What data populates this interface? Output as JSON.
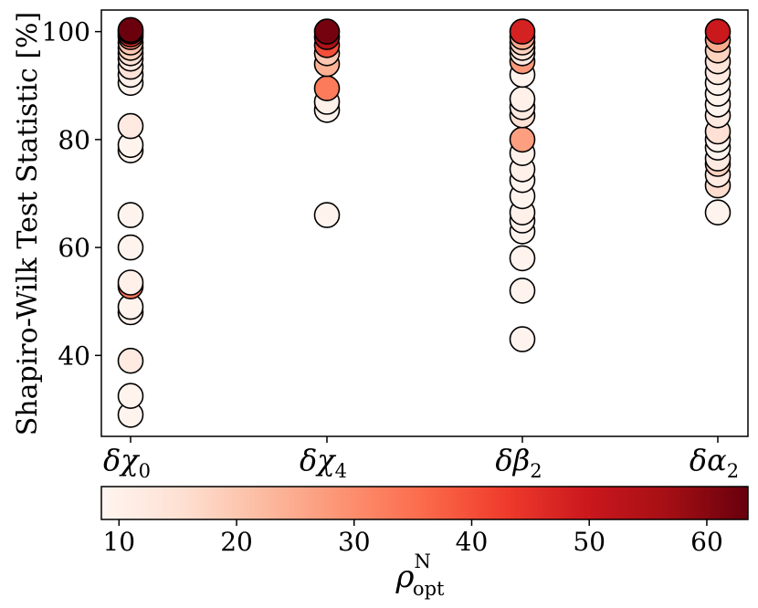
{
  "chart_data": {
    "type": "scatter",
    "ylabel": "Shapiro-Wilk Test Statistic [%]",
    "ylim": [
      25,
      104
    ],
    "yticks": [
      40,
      60,
      80,
      100
    ],
    "categories": [
      {
        "greek": "χ",
        "sub": "0"
      },
      {
        "greek": "χ",
        "sub": "4"
      },
      {
        "greek": "β",
        "sub": "2"
      },
      {
        "greek": "α",
        "sub": "2"
      }
    ],
    "points": [
      [
        0,
        29,
        9
      ],
      [
        0,
        32.5,
        9
      ],
      [
        0,
        39,
        12
      ],
      [
        0,
        48,
        9
      ],
      [
        0,
        49,
        9
      ],
      [
        0,
        52.8,
        34
      ],
      [
        0,
        53.5,
        10
      ],
      [
        0,
        60,
        9
      ],
      [
        0,
        66,
        9
      ],
      [
        0,
        78,
        9
      ],
      [
        0,
        79,
        9
      ],
      [
        0,
        82.5,
        12
      ],
      [
        0,
        90.5,
        9
      ],
      [
        0,
        92,
        10
      ],
      [
        0,
        93.5,
        14
      ],
      [
        0,
        95,
        12
      ],
      [
        0,
        96,
        15
      ],
      [
        0,
        97,
        18
      ],
      [
        0,
        98,
        20
      ],
      [
        0,
        99,
        30
      ],
      [
        0,
        99.5,
        45
      ],
      [
        0,
        100,
        60
      ],
      [
        0,
        100.3,
        63
      ],
      [
        1,
        66,
        9
      ],
      [
        1,
        85.5,
        9
      ],
      [
        1,
        87,
        10
      ],
      [
        1,
        89.5,
        33
      ],
      [
        1,
        94,
        24
      ],
      [
        1,
        96,
        20
      ],
      [
        1,
        97.5,
        40
      ],
      [
        1,
        99,
        55
      ],
      [
        1,
        100,
        62
      ],
      [
        2,
        43,
        9
      ],
      [
        2,
        52,
        9
      ],
      [
        2,
        58,
        9
      ],
      [
        2,
        63,
        9
      ],
      [
        2,
        65,
        9
      ],
      [
        2,
        66.5,
        10
      ],
      [
        2,
        69.5,
        9
      ],
      [
        2,
        72.5,
        9
      ],
      [
        2,
        74.5,
        10
      ],
      [
        2,
        77.5,
        10
      ],
      [
        2,
        80,
        27
      ],
      [
        2,
        84.5,
        15
      ],
      [
        2,
        86,
        12
      ],
      [
        2,
        87.5,
        10
      ],
      [
        2,
        92,
        9
      ],
      [
        2,
        94.5,
        28
      ],
      [
        2,
        96,
        12
      ],
      [
        2,
        97,
        14
      ],
      [
        2,
        98,
        18
      ],
      [
        2,
        99,
        25
      ],
      [
        2,
        100,
        48
      ],
      [
        3,
        66.5,
        9
      ],
      [
        3,
        71.5,
        16
      ],
      [
        3,
        73.5,
        12
      ],
      [
        3,
        75.5,
        18
      ],
      [
        3,
        76.5,
        12
      ],
      [
        3,
        78.5,
        9
      ],
      [
        3,
        80,
        9
      ],
      [
        3,
        81.5,
        15
      ],
      [
        3,
        84.5,
        12
      ],
      [
        3,
        86.5,
        9
      ],
      [
        3,
        88.5,
        9
      ],
      [
        3,
        90.5,
        9
      ],
      [
        3,
        92.5,
        12
      ],
      [
        3,
        94.5,
        14
      ],
      [
        3,
        96.5,
        18
      ],
      [
        3,
        98.5,
        25
      ],
      [
        3,
        100,
        50
      ]
    ],
    "colorbar": {
      "label_main": "ρ",
      "label_sup": "N",
      "label_sub": "opt",
      "vmin": 8.5,
      "vmax": 63.5,
      "ticks": [
        10,
        20,
        30,
        40,
        50,
        60
      ],
      "colormap": "Reds",
      "stops": [
        "#fff5f0",
        "#fee0d2",
        "#fcbba1",
        "#fc9272",
        "#fb6a4a",
        "#ef3b2c",
        "#cb181d",
        "#a50f15",
        "#67000d"
      ]
    },
    "grid": false
  }
}
